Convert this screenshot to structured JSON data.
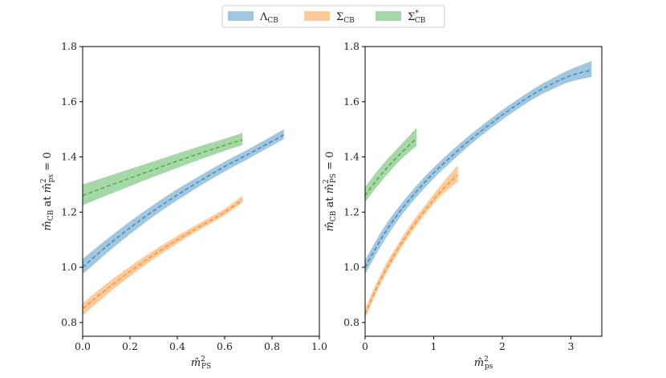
{
  "legend": [
    {
      "label": "Λ_CB",
      "main": "Λ",
      "sub": "CB",
      "sup": "",
      "color": "#1f77b4"
    },
    {
      "label": "Σ_CB",
      "main": "Σ",
      "sub": "CB",
      "sup": "",
      "color": "#ff7f0e"
    },
    {
      "label": "Σ*_CB",
      "main": "Σ",
      "sub": "CB",
      "sup": "*",
      "color": "#2ca02c"
    }
  ],
  "chart_data": [
    {
      "type": "area",
      "xlabel": "m̂²_PS",
      "xlabel_main": "m̂",
      "xlabel_sub": "PS",
      "ylabel": "m̂_CB at m̂²_ps = 0",
      "ylabel_main": "m̂",
      "ylabel_sub": "CB",
      "ylabel_mid": " at ",
      "ylabel_main2": "m̂",
      "ylabel_sub2": "ps",
      "ylabel_tail": " = 0",
      "xlim": [
        0,
        1.0
      ],
      "ylim": [
        0.75,
        1.8
      ],
      "xticks": [
        "0.0",
        "0.2",
        "0.4",
        "0.6",
        "0.8",
        "1.0"
      ],
      "xtick_values": [
        0,
        0.2,
        0.4,
        0.6,
        0.8,
        1.0
      ],
      "yticks": [
        "0.8",
        "1.0",
        "1.2",
        "1.4",
        "1.6",
        "1.8"
      ],
      "ytick_values": [
        0.8,
        1.0,
        1.2,
        1.4,
        1.6,
        1.8
      ],
      "grid": false,
      "series": [
        {
          "label_ref": 0,
          "color": "#1f77b4",
          "x": [
            0,
            0.1,
            0.2,
            0.3,
            0.4,
            0.5,
            0.6,
            0.7,
            0.85
          ],
          "y": [
            1.0,
            1.075,
            1.143,
            1.205,
            1.262,
            1.315,
            1.365,
            1.41,
            1.48
          ],
          "lower": [
            0.975,
            1.05,
            1.12,
            1.185,
            1.243,
            1.297,
            1.347,
            1.393,
            1.465
          ],
          "upper": [
            1.03,
            1.1,
            1.166,
            1.227,
            1.283,
            1.334,
            1.383,
            1.428,
            1.5
          ]
        },
        {
          "label_ref": 1,
          "color": "#ff7f0e",
          "x": [
            0,
            0.1,
            0.2,
            0.3,
            0.4,
            0.5,
            0.6,
            0.675
          ],
          "y": [
            0.85,
            0.92,
            0.985,
            1.045,
            1.1,
            1.15,
            1.2,
            1.245
          ],
          "lower": [
            0.825,
            0.9,
            0.968,
            1.03,
            1.087,
            1.139,
            1.189,
            1.235
          ],
          "upper": [
            0.87,
            0.94,
            1.003,
            1.061,
            1.114,
            1.163,
            1.212,
            1.26
          ]
        },
        {
          "label_ref": 2,
          "color": "#2ca02c",
          "x": [
            0,
            0.1,
            0.2,
            0.3,
            0.4,
            0.5,
            0.6,
            0.675
          ],
          "y": [
            1.26,
            1.292,
            1.323,
            1.354,
            1.385,
            1.414,
            1.442,
            1.462
          ],
          "lower": [
            1.225,
            1.26,
            1.294,
            1.328,
            1.36,
            1.392,
            1.422,
            1.443
          ],
          "upper": [
            1.3,
            1.328,
            1.356,
            1.384,
            1.412,
            1.44,
            1.466,
            1.487
          ]
        }
      ]
    },
    {
      "type": "area",
      "xlabel": "m̂²_ps",
      "xlabel_main": "m̂",
      "xlabel_sub": "ps",
      "ylabel": "m̂_CB at m̂²_PS = 0",
      "ylabel_main": "m̂",
      "ylabel_sub": "CB",
      "ylabel_mid": " at ",
      "ylabel_main2": "m̂",
      "ylabel_sub2": "PS",
      "ylabel_tail": " = 0",
      "xlim": [
        0,
        3.45
      ],
      "ylim": [
        0.75,
        1.8
      ],
      "xticks": [
        "0",
        "1",
        "2",
        "3"
      ],
      "xtick_values": [
        0,
        1,
        2,
        3
      ],
      "yticks": [
        "0.8",
        "1.0",
        "1.2",
        "1.4",
        "1.6",
        "1.8"
      ],
      "ytick_values": [
        0.8,
        1.0,
        1.2,
        1.4,
        1.6,
        1.8
      ],
      "grid": false,
      "series": [
        {
          "label_ref": 0,
          "color": "#1f77b4",
          "x": [
            0,
            0.25,
            0.5,
            0.75,
            1.0,
            1.25,
            1.5,
            1.75,
            2.0,
            2.25,
            2.5,
            2.75,
            3.0,
            3.3
          ],
          "y": [
            1.0,
            1.11,
            1.2,
            1.275,
            1.342,
            1.4,
            1.455,
            1.505,
            1.552,
            1.595,
            1.635,
            1.668,
            1.695,
            1.715
          ],
          "lower": [
            0.975,
            1.085,
            1.178,
            1.255,
            1.322,
            1.381,
            1.437,
            1.488,
            1.535,
            1.578,
            1.617,
            1.648,
            1.673,
            1.69
          ],
          "upper": [
            1.025,
            1.135,
            1.222,
            1.296,
            1.362,
            1.42,
            1.474,
            1.523,
            1.57,
            1.613,
            1.653,
            1.688,
            1.718,
            1.748
          ]
        },
        {
          "label_ref": 1,
          "color": "#ff7f0e",
          "x": [
            0,
            0.15,
            0.3,
            0.5,
            0.7,
            0.9,
            1.1,
            1.35
          ],
          "y": [
            0.83,
            0.915,
            0.99,
            1.075,
            1.15,
            1.215,
            1.275,
            1.335
          ],
          "lower": [
            0.815,
            0.9,
            0.975,
            1.06,
            1.135,
            1.2,
            1.258,
            1.31
          ],
          "upper": [
            0.85,
            0.935,
            1.01,
            1.093,
            1.168,
            1.233,
            1.297,
            1.37
          ]
        },
        {
          "label_ref": 2,
          "color": "#2ca02c",
          "x": [
            0,
            0.15,
            0.3,
            0.45,
            0.6,
            0.75
          ],
          "y": [
            1.26,
            1.31,
            1.355,
            1.395,
            1.432,
            1.468
          ],
          "lower": [
            1.235,
            1.285,
            1.33,
            1.372,
            1.408,
            1.44
          ],
          "upper": [
            1.29,
            1.34,
            1.385,
            1.425,
            1.465,
            1.505
          ]
        }
      ]
    }
  ]
}
